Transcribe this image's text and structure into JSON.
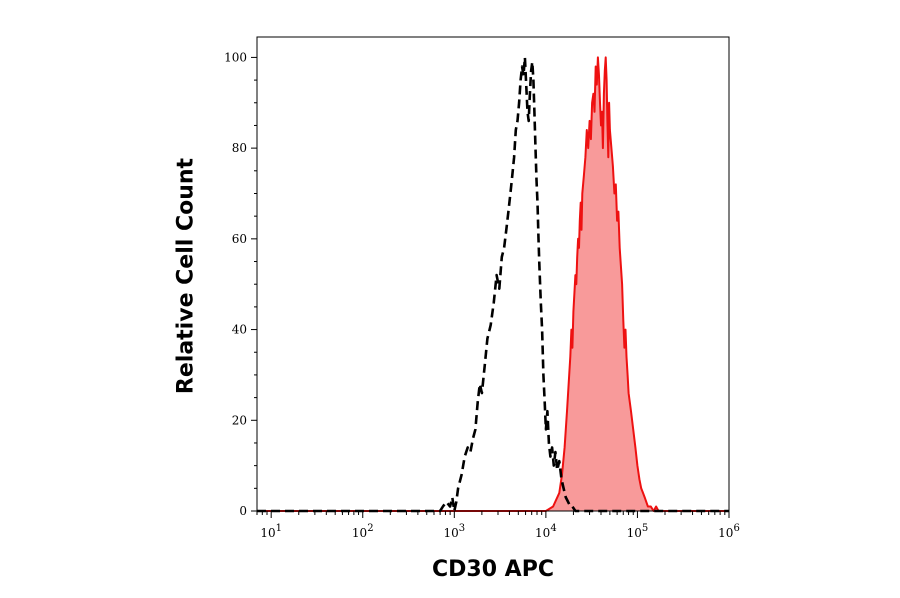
{
  "chart_data": {
    "type": "area",
    "xlabel": "CD30 APC",
    "ylabel": "Relative Cell Count",
    "x_scale": "log",
    "xlim": [
      7,
      1000000
    ],
    "ylim": [
      0,
      100
    ],
    "grid": false,
    "x_ticks": [
      {
        "value": 10,
        "base": "10",
        "exp": "1"
      },
      {
        "value": 100,
        "base": "10",
        "exp": "2"
      },
      {
        "value": 1000,
        "base": "10",
        "exp": "3"
      },
      {
        "value": 10000,
        "base": "10",
        "exp": "4"
      },
      {
        "value": 100000,
        "base": "10",
        "exp": "5"
      },
      {
        "value": 1000000,
        "base": "10",
        "exp": "6"
      }
    ],
    "y_ticks": [
      "0",
      "20",
      "40",
      "60",
      "80",
      "100"
    ],
    "colors": {
      "stained_line": "#ee1111",
      "stained_fill": "#f89a9a",
      "control_line": "#000000"
    },
    "series": [
      {
        "style": "dashed-outline",
        "color": "#000000",
        "x": [
          7,
          700,
          750,
          820,
          900,
          950,
          1000,
          1050,
          1100,
          1200,
          1300,
          1400,
          1500,
          1600,
          1700,
          1800,
          1900,
          2000,
          2150,
          2300,
          2500,
          2700,
          2900,
          3100,
          3300,
          3500,
          3700,
          3900,
          4100,
          4300,
          4500,
          4700,
          4900,
          5100,
          5300,
          5500,
          5700,
          5900,
          6100,
          6300,
          6500,
          6700,
          6900,
          7100,
          7300,
          7500,
          7700,
          7900,
          8100,
          8300,
          8500,
          8800,
          9100,
          9400,
          9700,
          10000,
          10400,
          10800,
          11200,
          11700,
          12200,
          12700,
          13300,
          14000,
          14800,
          15600,
          16500,
          17500,
          18500,
          19500,
          21000,
          23000,
          25000,
          1000000
        ],
        "y": [
          0,
          0,
          1,
          2,
          1,
          3,
          0,
          2,
          5,
          8,
          12,
          14,
          13,
          16,
          18,
          24,
          28,
          26,
          32,
          38,
          41,
          46,
          52,
          49,
          56,
          58,
          62,
          66,
          70,
          74,
          78,
          84,
          86,
          90,
          95,
          98,
          96,
          100,
          94,
          88,
          86,
          92,
          97,
          99,
          95,
          88,
          80,
          73,
          68,
          60,
          54,
          46,
          40,
          30,
          24,
          18,
          22,
          15,
          12,
          14,
          10,
          13,
          9,
          11,
          7,
          5,
          3,
          2,
          1,
          1,
          0,
          0,
          0,
          0
        ]
      },
      {
        "style": "filled",
        "color": "#ee1111",
        "x": [
          7,
          10000,
          12000,
          14000,
          15000,
          16000,
          17000,
          17500,
          18000,
          18500,
          19000,
          19500,
          20000,
          20500,
          21000,
          21500,
          22000,
          22500,
          23000,
          23500,
          24000,
          24500,
          25000,
          26000,
          27000,
          28000,
          29000,
          30000,
          31000,
          32000,
          33000,
          34000,
          35000,
          36000,
          37000,
          38000,
          39000,
          40000,
          41000,
          42000,
          43000,
          44000,
          45000,
          46000,
          47000,
          48000,
          49000,
          50000,
          52000,
          54000,
          56000,
          58000,
          60000,
          62000,
          64000,
          66000,
          68000,
          70000,
          72000,
          74000,
          76000,
          78000,
          80000,
          85000,
          90000,
          95000,
          100000,
          105000,
          110000,
          115000,
          120000,
          125000,
          130000,
          140000,
          150000,
          160000,
          170000,
          180000,
          200000,
          230000,
          1000000
        ],
        "y": [
          0,
          0,
          1,
          4,
          8,
          14,
          22,
          26,
          30,
          34,
          40,
          36,
          44,
          48,
          52,
          50,
          56,
          60,
          58,
          64,
          68,
          62,
          70,
          74,
          78,
          84,
          80,
          86,
          82,
          90,
          92,
          88,
          98,
          94,
          100,
          96,
          90,
          85,
          88,
          80,
          92,
          97,
          100,
          95,
          86,
          78,
          90,
          84,
          80,
          76,
          70,
          72,
          64,
          66,
          58,
          54,
          50,
          42,
          36,
          40,
          34,
          30,
          26,
          22,
          18,
          14,
          10,
          7,
          5,
          4,
          3,
          2,
          1,
          1,
          0,
          1,
          0,
          0,
          0,
          0,
          0
        ]
      }
    ]
  }
}
